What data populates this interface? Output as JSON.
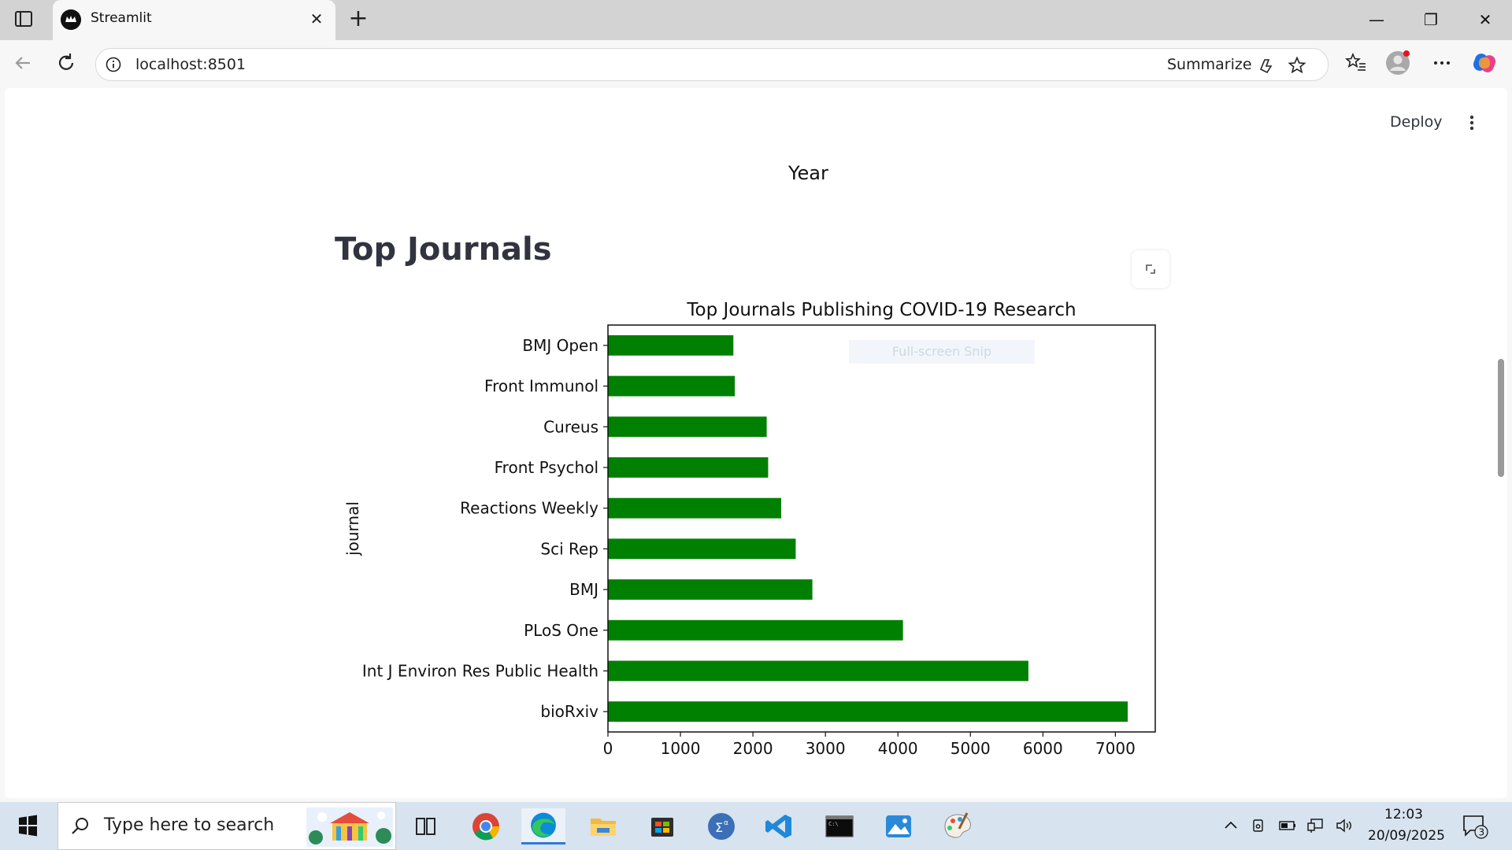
{
  "browser": {
    "tab_title": "Streamlit",
    "url": "localhost:8501",
    "summarize_label": "Summarize"
  },
  "app": {
    "deploy_label": "Deploy",
    "previous_chart_xlabel": "Year",
    "section_title": "Top Journals",
    "snip_hint": "Full-screen Snip"
  },
  "chart_data": {
    "type": "bar",
    "orientation": "horizontal",
    "title": "Top Journals Publishing COVID-19 Research",
    "xlabel": "",
    "ylabel": "journal",
    "categories": [
      "bioRxiv",
      "Int J Environ Res Public Health",
      "PLoS One",
      "BMJ",
      "Sci Rep",
      "Reactions Weekly",
      "Front Psychol",
      "Cureus",
      "Front Immunol",
      "BMJ Open"
    ],
    "values": [
      7170,
      5800,
      4070,
      2820,
      2590,
      2390,
      2210,
      2190,
      1750,
      1730
    ],
    "xlim": [
      0,
      7550
    ],
    "xticks": [
      0,
      1000,
      2000,
      3000,
      4000,
      5000,
      6000,
      7000
    ],
    "bar_color": "#008000",
    "grid": false,
    "legend": "none"
  },
  "taskbar": {
    "search_placeholder": "Type here to search",
    "time": "12:03",
    "date": "20/09/2025",
    "notification_count": "3"
  },
  "colors": {
    "tabstrip": "#d3d3d3",
    "taskbar": "#d7e3ef",
    "accent": "#2b7bd6"
  }
}
